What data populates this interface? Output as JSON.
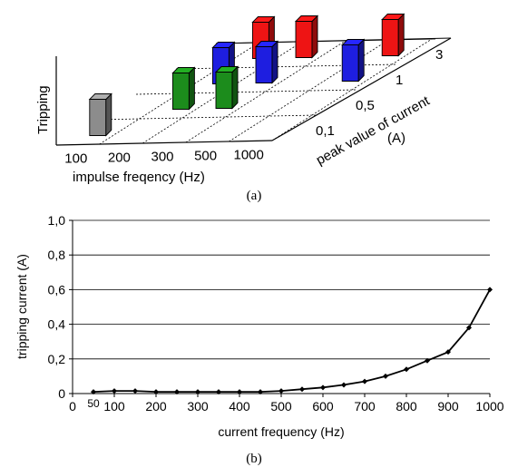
{
  "chart_data": [
    {
      "type": "bar",
      "dimensions": "3d",
      "ylabel": "Tripping",
      "xlabel": "impulse freqency (Hz)",
      "zlabel_line1": "peak value of current",
      "zlabel_line2": "(A)",
      "x_categories": [
        "100",
        "200",
        "300",
        "500",
        "1000"
      ],
      "z_categories": [
        "0,1",
        "0,5",
        "1",
        "3"
      ],
      "points": [
        {
          "x": "100",
          "z": "0,1",
          "tripped": true,
          "color": "#8c8c8c"
        },
        {
          "x": "200",
          "z": "0,5",
          "tripped": true,
          "color": "#1c8c1c"
        },
        {
          "x": "300",
          "z": "0,5",
          "tripped": true,
          "color": "#1c8c1c"
        },
        {
          "x": "200",
          "z": "1",
          "tripped": true,
          "color": "#1e1ee0"
        },
        {
          "x": "300",
          "z": "1",
          "tripped": true,
          "color": "#1e1ee0"
        },
        {
          "x": "1000",
          "z": "1",
          "tripped": true,
          "color": "#1e1ee0"
        },
        {
          "x": "200",
          "z": "3",
          "tripped": true,
          "color": "#ee1414"
        },
        {
          "x": "300",
          "z": "3",
          "tripped": true,
          "color": "#ee1414"
        },
        {
          "x": "1000",
          "z": "3",
          "tripped": true,
          "color": "#ee1414"
        }
      ],
      "caption": "(a)"
    },
    {
      "type": "line",
      "xlabel": "current frequency (Hz)",
      "ylabel": "tripping current (A)",
      "xlim": [
        0,
        1000
      ],
      "ylim": [
        0,
        1.0
      ],
      "x_ticks": [
        "0",
        "100",
        "200",
        "300",
        "400",
        "500",
        "600",
        "700",
        "800",
        "900",
        "1000"
      ],
      "x_extra_tick": "50",
      "y_ticks": [
        "0",
        "0,2",
        "0,4",
        "0,6",
        "0,8",
        "1,0"
      ],
      "grid": true,
      "x": [
        50,
        100,
        150,
        200,
        250,
        300,
        350,
        400,
        450,
        500,
        550,
        600,
        650,
        700,
        750,
        800,
        850,
        900,
        950,
        1000
      ],
      "y": [
        0.01,
        0.015,
        0.015,
        0.01,
        0.01,
        0.01,
        0.01,
        0.01,
        0.01,
        0.015,
        0.025,
        0.035,
        0.05,
        0.07,
        0.1,
        0.14,
        0.19,
        0.24,
        0.38,
        0.6
      ],
      "caption": "(b)"
    }
  ]
}
